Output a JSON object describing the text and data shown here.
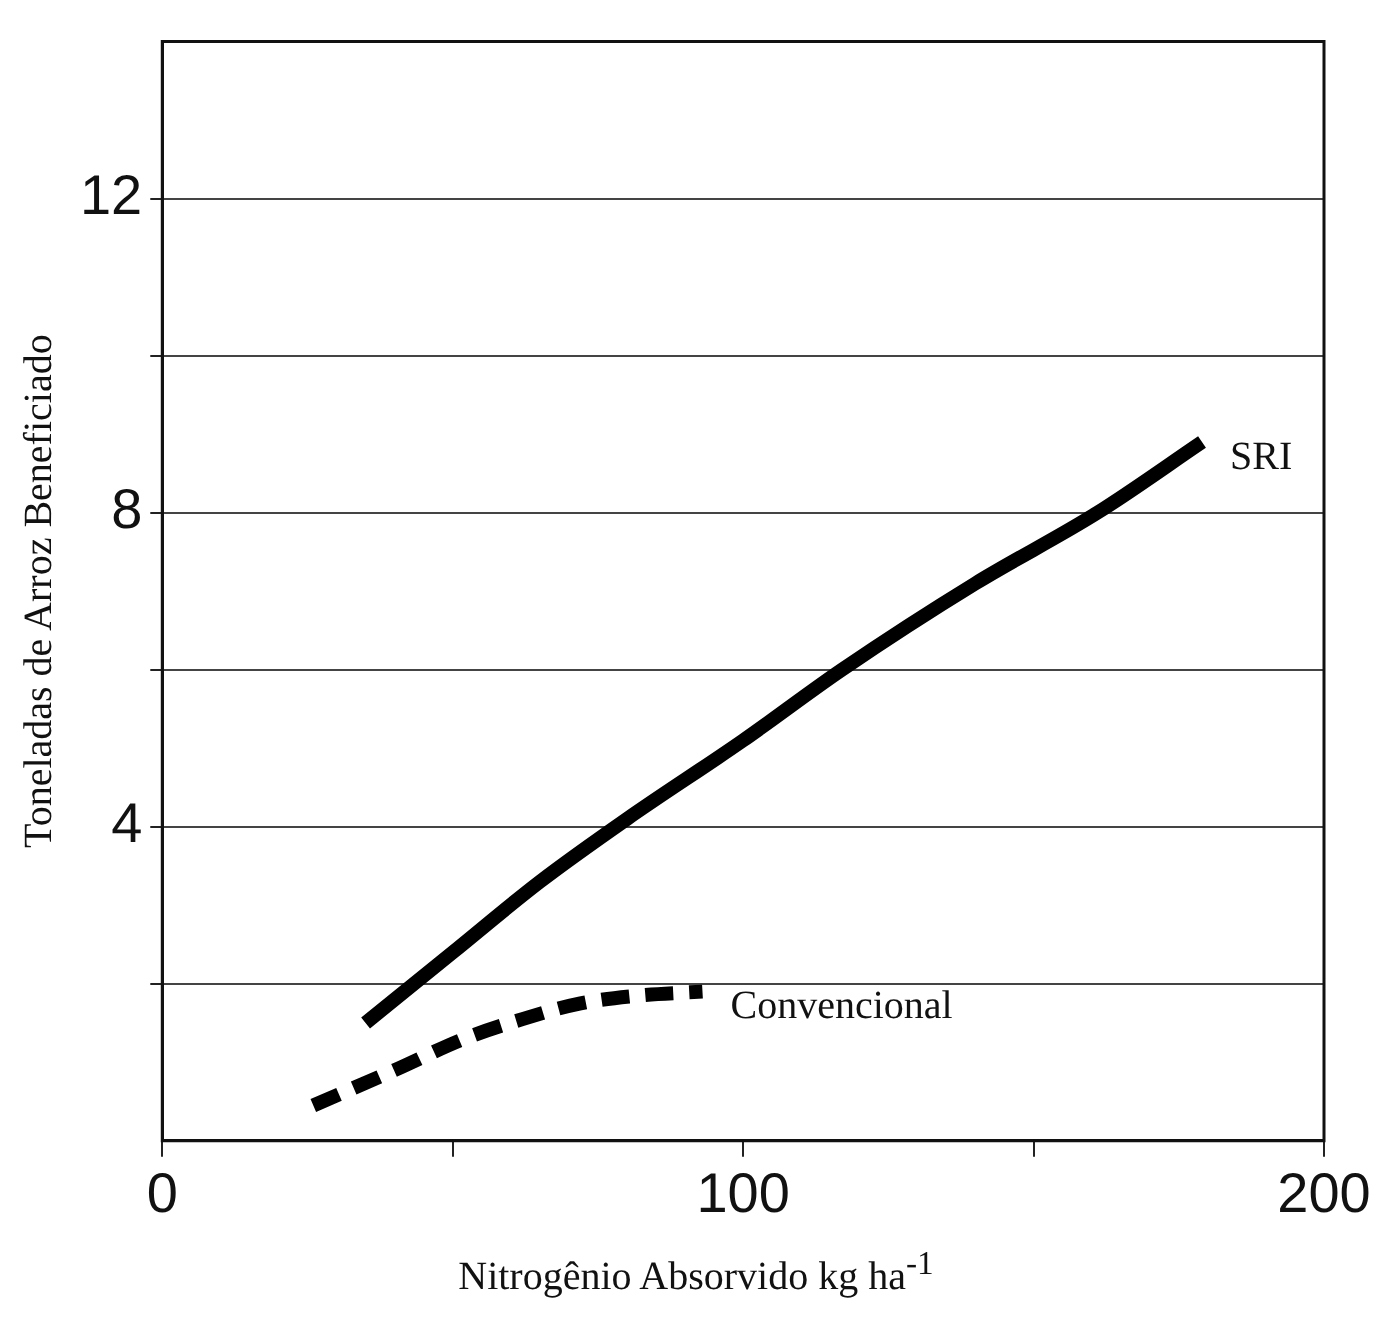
{
  "chart_data": {
    "type": "line",
    "xlabel": "Nitrogênio Absorvido  kg ha$^{-1}$",
    "ylabel": "Toneladas de Arroz Beneficiado",
    "xlim": [
      0,
      200
    ],
    "xticks": [
      0,
      {
        "value": 50,
        "label": null
      },
      100,
      {
        "value": 150,
        "label": null
      },
      200
    ],
    "ylim": [
      0,
      14
    ],
    "yticks": [
      {
        "value": 2,
        "label": null
      },
      4,
      {
        "value": 6,
        "label": null
      },
      8,
      {
        "value": 10,
        "label": null
      },
      12
    ],
    "grid": "y",
    "legend": false,
    "marker": "none",
    "series": [
      {
        "name": "SRI",
        "color": "#000000",
        "line_style": "solid",
        "x": [
          35,
          50,
          65,
          80,
          100,
          117,
          140,
          161,
          179
        ],
        "values": [
          1.5,
          2.4,
          3.3,
          4.1,
          5.1,
          6.0,
          7.1,
          8.0,
          8.9
        ]
      },
      {
        "name": "Convencional",
        "color": "#000000",
        "line_style": "dashed",
        "x": [
          26,
          40,
          52,
          62,
          72,
          82,
          93
        ],
        "values": [
          0.45,
          0.9,
          1.3,
          1.55,
          1.75,
          1.85,
          1.9
        ]
      }
    ]
  }
}
